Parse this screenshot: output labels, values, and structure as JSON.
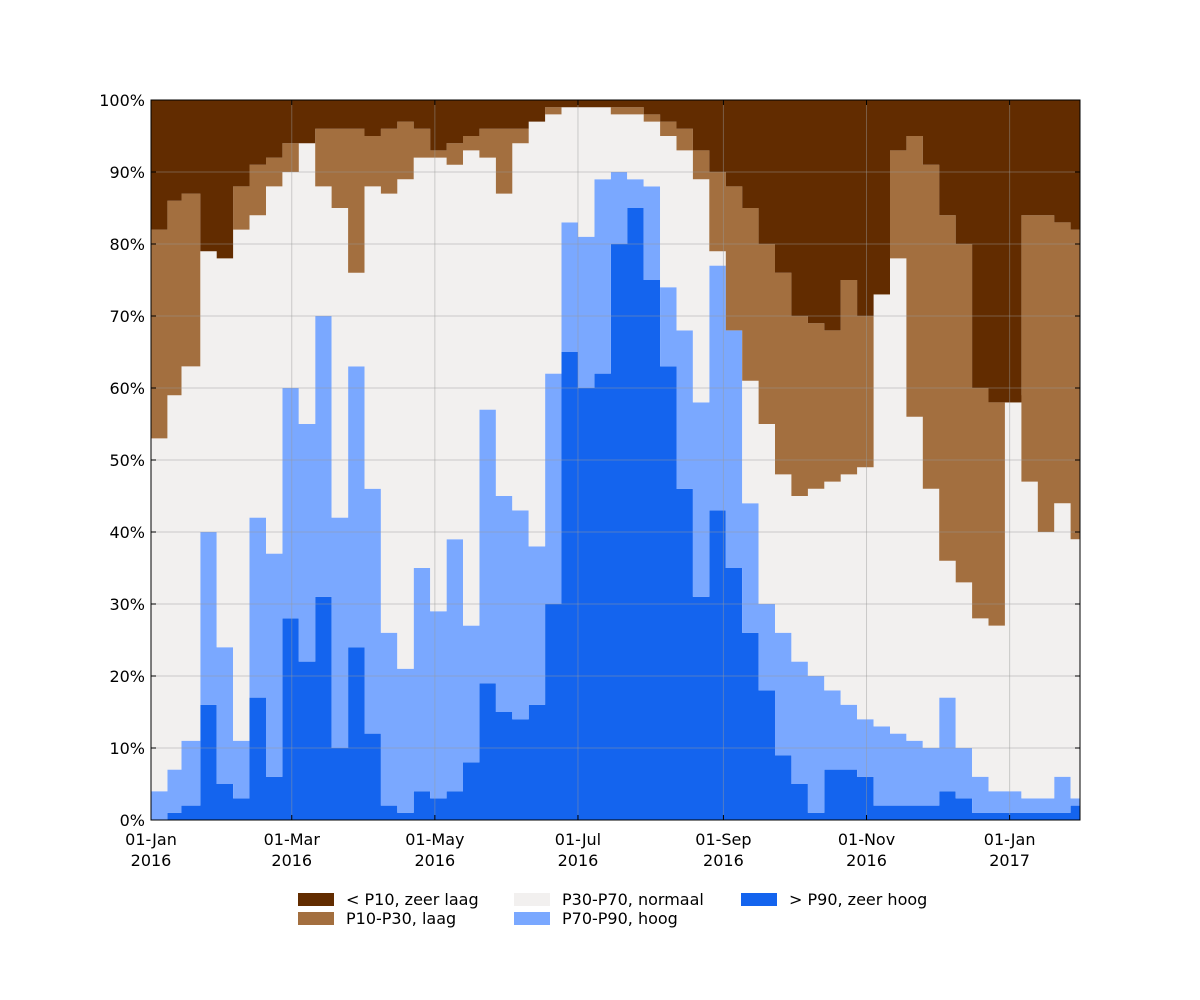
{
  "chart_data": {
    "type": "area",
    "stacked": true,
    "x_start": "2016-01-01",
    "x_end": "2017-01-31",
    "xlim": [
      "2016-01-01",
      "2017-01-31"
    ],
    "ylim": [
      0,
      100
    ],
    "grid": true,
    "legend_position": "bottom",
    "x_ticks": [
      {
        "date": "2016-01-01",
        "label_line1": "01-Jan",
        "label_line2": "2016"
      },
      {
        "date": "2016-03-01",
        "label_line1": "01-Mar",
        "label_line2": "2016"
      },
      {
        "date": "2016-05-01",
        "label_line1": "01-May",
        "label_line2": "2016"
      },
      {
        "date": "2016-07-01",
        "label_line1": "01-Jul",
        "label_line2": "2016"
      },
      {
        "date": "2016-09-01",
        "label_line1": "01-Sep",
        "label_line2": "2016"
      },
      {
        "date": "2016-11-01",
        "label_line1": "01-Nov",
        "label_line2": "2016"
      },
      {
        "date": "2017-01-01",
        "label_line1": "01-Jan",
        "label_line2": "2017"
      }
    ],
    "y_ticks": [
      {
        "value": 0,
        "label": "0%"
      },
      {
        "value": 10,
        "label": "10%"
      },
      {
        "value": 20,
        "label": "20%"
      },
      {
        "value": 30,
        "label": "30%"
      },
      {
        "value": 40,
        "label": "40%"
      },
      {
        "value": 50,
        "label": "50%"
      },
      {
        "value": 60,
        "label": "60%"
      },
      {
        "value": 70,
        "label": "70%"
      },
      {
        "value": 80,
        "label": "80%"
      },
      {
        "value": 90,
        "label": "90%"
      },
      {
        "value": 100,
        "label": "100%"
      }
    ],
    "series": [
      {
        "name": "> P90, zeer hoog",
        "color": "#1464ee",
        "cumulative": true
      },
      {
        "name": "P70-P90, hoog",
        "color": "#7aa8ff",
        "cumulative": true
      },
      {
        "name": "P30-P70, normaal",
        "color": "#f2f0ef",
        "cumulative": true
      },
      {
        "name": "P10-P30, laag",
        "color": "#a36f3f",
        "cumulative": true
      },
      {
        "name": "< P10, zeer laag",
        "color": "#622c00",
        "cumulative": true
      }
    ],
    "cumulative_upper_bounds": {
      "dates": [
        "2016-01-01",
        "2016-01-08",
        "2016-01-14",
        "2016-01-22",
        "2016-01-29",
        "2016-02-05",
        "2016-02-12",
        "2016-02-19",
        "2016-02-26",
        "2016-03-04",
        "2016-03-11",
        "2016-03-18",
        "2016-03-25",
        "2016-04-01",
        "2016-04-08",
        "2016-04-15",
        "2016-04-22",
        "2016-04-29",
        "2016-05-06",
        "2016-05-13",
        "2016-05-20",
        "2016-05-27",
        "2016-06-03",
        "2016-06-10",
        "2016-06-17",
        "2016-06-24",
        "2016-07-01",
        "2016-07-08",
        "2016-07-15",
        "2016-07-22",
        "2016-07-29",
        "2016-08-05",
        "2016-08-12",
        "2016-08-19",
        "2016-08-26",
        "2016-09-02",
        "2016-09-09",
        "2016-09-16",
        "2016-09-23",
        "2016-09-30",
        "2016-10-07",
        "2016-10-14",
        "2016-10-21",
        "2016-10-28",
        "2016-11-04",
        "2016-11-11",
        "2016-11-18",
        "2016-11-25",
        "2016-12-02",
        "2016-12-09",
        "2016-12-16",
        "2016-12-23",
        "2016-12-30",
        "2017-01-06",
        "2017-01-13",
        "2017-01-20",
        "2017-01-27",
        "2017-01-31"
      ],
      "gt_p90": [
        0,
        1,
        2,
        16,
        5,
        3,
        17,
        6,
        28,
        22,
        31,
        10,
        24,
        12,
        2,
        1,
        4,
        3,
        4,
        8,
        19,
        15,
        14,
        16,
        30,
        65,
        60,
        62,
        80,
        85,
        75,
        63,
        46,
        31,
        43,
        35,
        26,
        18,
        9,
        5,
        1,
        7,
        7,
        6,
        2,
        2,
        2,
        2,
        4,
        3,
        1,
        1,
        1,
        1,
        1,
        1,
        2,
        1
      ],
      "gt_p70": [
        4,
        7,
        11,
        40,
        24,
        11,
        42,
        37,
        60,
        55,
        70,
        42,
        63,
        46,
        26,
        21,
        35,
        29,
        39,
        27,
        57,
        45,
        43,
        38,
        62,
        83,
        81,
        89,
        90,
        89,
        88,
        74,
        68,
        58,
        77,
        71,
        44,
        30,
        26,
        22,
        20,
        18,
        16,
        14,
        13,
        12,
        11,
        10,
        17,
        10,
        6,
        4,
        4,
        3,
        3,
        6,
        3,
        4
      ],
      "gt_p30": [
        53,
        59,
        63,
        79,
        78,
        82,
        84,
        88,
        90,
        94,
        88,
        85,
        76,
        88,
        87,
        89,
        92,
        92,
        91,
        93,
        92,
        87,
        94,
        97,
        98,
        99,
        99,
        99,
        98,
        98,
        97,
        95,
        93,
        89,
        79,
        68,
        61,
        55,
        48,
        45,
        46,
        47,
        48,
        49,
        77,
        78,
        56,
        46,
        36,
        33,
        28,
        27,
        59,
        47,
        40,
        44,
        39,
        47
      ],
      "gt_p10": [
        82,
        86,
        87,
        79,
        78,
        88,
        91,
        92,
        94,
        94,
        96,
        96,
        96,
        95,
        96,
        97,
        96,
        93,
        94,
        95,
        96,
        96,
        96,
        97,
        99,
        99,
        99,
        99,
        99,
        99,
        98,
        97,
        96,
        93,
        90,
        88,
        85,
        80,
        76,
        70,
        69,
        68,
        75,
        70,
        73,
        93,
        95,
        91,
        84,
        80,
        60,
        58,
        58,
        84,
        84,
        83,
        82,
        89
      ]
    }
  },
  "legend": {
    "items": [
      {
        "label": "< P10, zeer laag",
        "color": "#622c00"
      },
      {
        "label": "P10-P30, laag",
        "color": "#a36f3f"
      },
      {
        "label": "P30-P70, normaal",
        "color": "#f2f0ef"
      },
      {
        "label": "P70-P90, hoog",
        "color": "#7aa8ff"
      },
      {
        "label": "> P90, zeer hoog",
        "color": "#1464ee"
      }
    ]
  }
}
